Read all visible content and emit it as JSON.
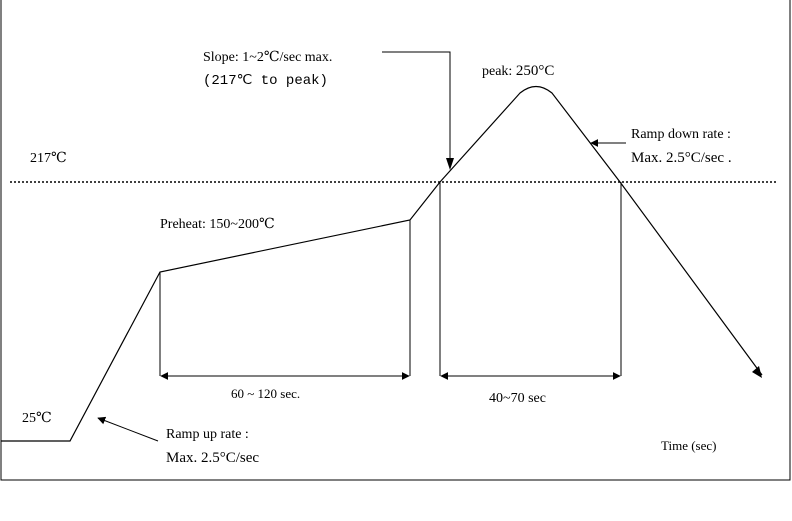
{
  "labels": {
    "slope_line1": "Slope: 1~2℃/sec max.",
    "slope_line2": "(217℃ to peak)",
    "peak_prefix": "peak: ",
    "peak_value": "250°C",
    "temp_217": "217℃",
    "ramp_down_line1": "Ramp down rate :",
    "ramp_down_line2": "Max. 2.5°C/sec .",
    "preheat": "Preheat: 150~200℃",
    "preheat_duration": "60 ~ 120 sec.",
    "reflow_duration": "40~70 sec",
    "temp_25": "25℃",
    "ramp_up_line1": "Ramp up rate :",
    "ramp_up_line2": "Max. 2.5°C/sec",
    "time_axis": "Time (sec)"
  },
  "colors": {
    "line": "#000000",
    "background": "#ffffff"
  }
}
